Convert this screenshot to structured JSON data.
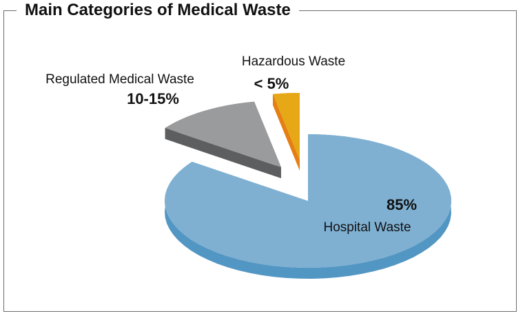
{
  "chart_data": {
    "type": "pie",
    "title": "Main Categories of Medical Waste",
    "slices": [
      {
        "name": "Hospital Waste",
        "value_label": "85%",
        "value": 85,
        "top_color": "#7fb0d2",
        "side_color": "#5296c3"
      },
      {
        "name": "Regulated Medical Waste",
        "value_label": "10-15%",
        "value": 12,
        "top_color": "#9a9b9d",
        "side_color": "#5d5e60"
      },
      {
        "name": "Hazardous Waste",
        "value_label": "< 5%",
        "value": 3,
        "top_color": "#e6a816",
        "side_color": "#e57f13"
      }
    ]
  }
}
